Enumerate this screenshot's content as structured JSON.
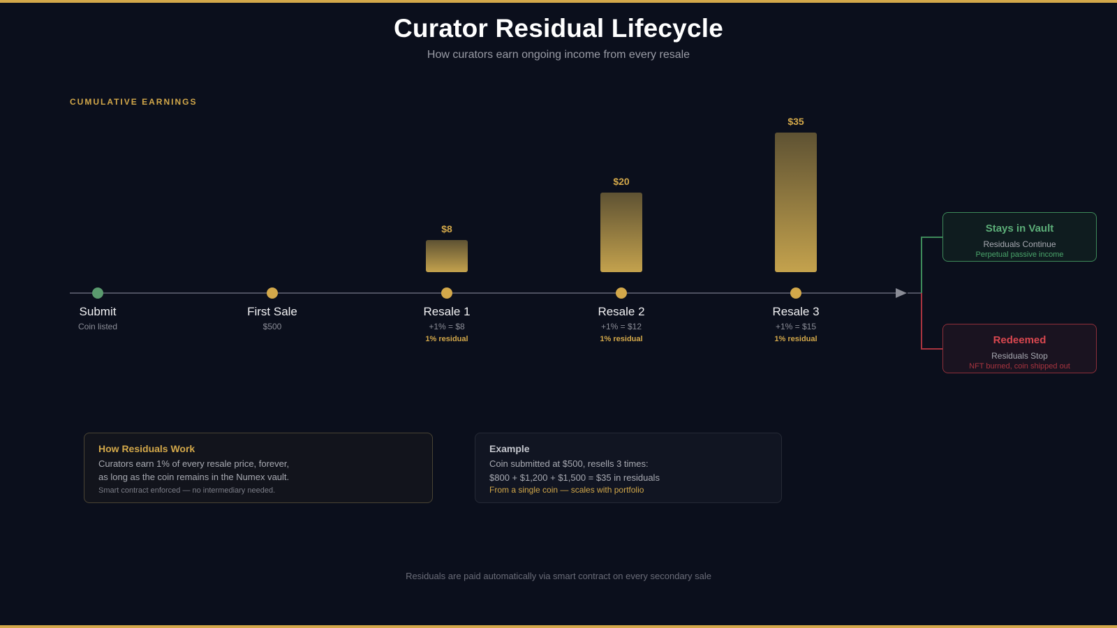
{
  "header": {
    "title": "Curator Residual Lifecycle",
    "subtitle": "How curators earn ongoing income from every resale"
  },
  "section_label": "CUMULATIVE EARNINGS",
  "stages": [
    {
      "name": "Submit",
      "detail": "Coin listed",
      "tag": "",
      "cumulative": null
    },
    {
      "name": "First Sale",
      "detail": "$500",
      "tag": "",
      "cumulative": null
    },
    {
      "name": "Resale 1",
      "detail": "+1% = $8",
      "tag": "1% residual",
      "cumulative": "$8",
      "value": 8
    },
    {
      "name": "Resale 2",
      "detail": "+1% = $12",
      "tag": "1% residual",
      "cumulative": "$20",
      "value": 20
    },
    {
      "name": "Resale 3",
      "detail": "+1% = $15",
      "tag": "1% residual",
      "cumulative": "$35",
      "value": 35
    }
  ],
  "outcomes": {
    "vault": {
      "title": "Stays in Vault",
      "sub": "Residuals Continue",
      "note": "Perpetual passive income"
    },
    "redeem": {
      "title": "Redeemed",
      "sub": "Residuals Stop",
      "note": "NFT burned, coin shipped out"
    }
  },
  "cards": {
    "how": {
      "title": "How Residuals Work",
      "line1": "Curators earn 1% of every resale price, forever,",
      "line2": "as long as the coin remains in the Numex vault.",
      "note": "Smart contract enforced — no intermediary needed."
    },
    "example": {
      "title": "Example",
      "line1": "Coin submitted at $500, resells 3 times:",
      "line2": "$800 + $1,200 + $1,500 = $35 in residuals",
      "highlight": "From a single coin — scales with portfolio"
    }
  },
  "footer": "Residuals are paid automatically via smart contract on every secondary sale",
  "colors": {
    "background": "#0b0f1c",
    "accent_gold": "#d3a84a",
    "vault_green": "#3e8a5a",
    "redeem_red": "#a8343f"
  }
}
